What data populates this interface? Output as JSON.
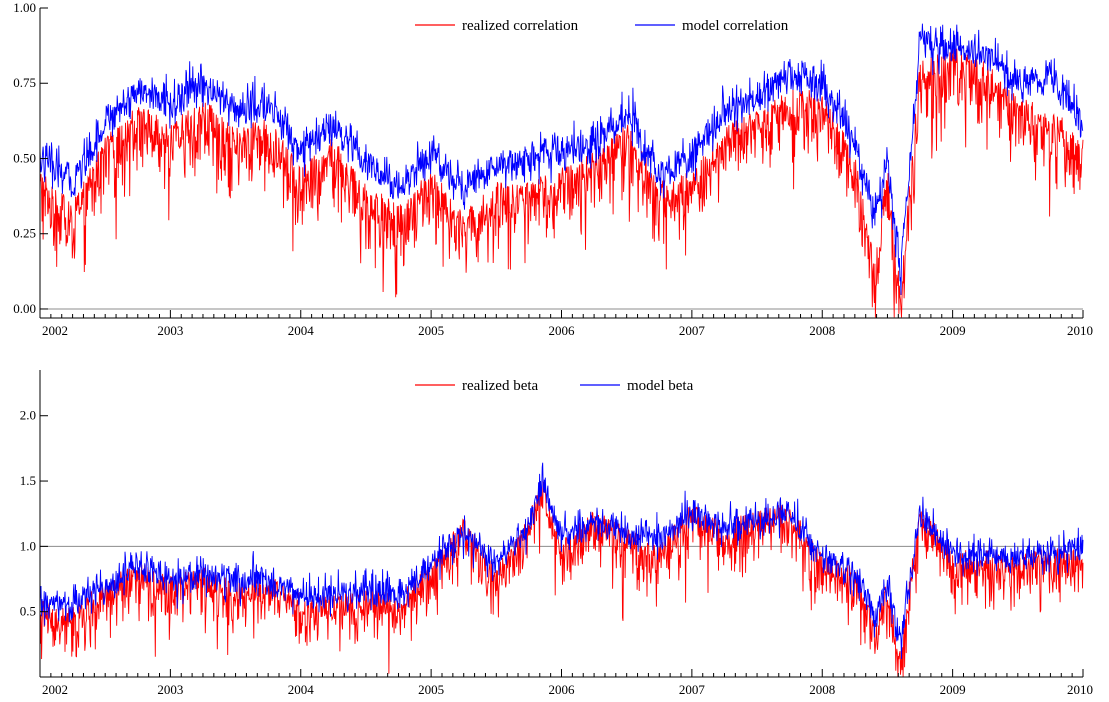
{
  "chart_data": [
    {
      "type": "line",
      "title": "",
      "xlabel": "",
      "ylabel": "",
      "xlim": [
        2002,
        2010
      ],
      "ylim": [
        -0.03,
        1.0
      ],
      "x_ticks": [
        "2002",
        "2003",
        "2004",
        "2005",
        "2006",
        "2007",
        "2008",
        "2009",
        "2010"
      ],
      "y_ticks": [
        "0.00",
        "0.25",
        "0.50",
        "0.75",
        "1.00"
      ],
      "y_tick_values": [
        0.0,
        0.25,
        0.5,
        0.75,
        1.0
      ],
      "reference_line": 0.0,
      "legend_position": "top-center",
      "grid": false,
      "x": [
        2002.0,
        2002.25,
        2002.5,
        2002.75,
        2003.0,
        2003.25,
        2003.5,
        2003.75,
        2004.0,
        2004.25,
        2004.5,
        2004.75,
        2005.0,
        2005.25,
        2005.5,
        2005.75,
        2006.0,
        2006.25,
        2006.5,
        2006.75,
        2007.0,
        2007.25,
        2007.5,
        2007.75,
        2008.0,
        2008.25,
        2008.4,
        2008.5,
        2008.6,
        2008.75,
        2009.0,
        2009.25,
        2009.5,
        2009.75,
        2010.0
      ],
      "series": [
        {
          "name": "realized correlation",
          "color": "#ff0000",
          "values": [
            0.45,
            0.33,
            0.55,
            0.66,
            0.6,
            0.68,
            0.58,
            0.62,
            0.45,
            0.55,
            0.4,
            0.32,
            0.45,
            0.3,
            0.4,
            0.4,
            0.45,
            0.5,
            0.6,
            0.4,
            0.45,
            0.58,
            0.65,
            0.72,
            0.7,
            0.5,
            0.15,
            0.45,
            0.05,
            0.8,
            0.85,
            0.8,
            0.68,
            0.65,
            0.55
          ]
        },
        {
          "name": "model correlation",
          "color": "#0000ff",
          "values": [
            0.5,
            0.42,
            0.62,
            0.73,
            0.68,
            0.75,
            0.66,
            0.68,
            0.53,
            0.6,
            0.48,
            0.4,
            0.52,
            0.4,
            0.48,
            0.5,
            0.52,
            0.55,
            0.65,
            0.45,
            0.5,
            0.65,
            0.7,
            0.78,
            0.75,
            0.55,
            0.3,
            0.5,
            0.12,
            0.88,
            0.87,
            0.85,
            0.75,
            0.78,
            0.62
          ]
        }
      ]
    },
    {
      "type": "line",
      "title": "",
      "xlabel": "",
      "ylabel": "",
      "xlim": [
        2002,
        2010
      ],
      "ylim": [
        0.0,
        2.35
      ],
      "x_ticks": [
        "2002",
        "2003",
        "2004",
        "2005",
        "2006",
        "2007",
        "2008",
        "2009",
        "2010"
      ],
      "y_ticks": [
        "0.5",
        "1.0",
        "1.5",
        "2.0"
      ],
      "y_tick_values": [
        0.5,
        1.0,
        1.5,
        2.0
      ],
      "reference_line": 1.0,
      "legend_position": "top-center",
      "grid": false,
      "x": [
        2002.0,
        2002.25,
        2002.5,
        2002.75,
        2003.0,
        2003.25,
        2003.5,
        2003.75,
        2004.0,
        2004.25,
        2004.5,
        2004.75,
        2005.0,
        2005.25,
        2005.5,
        2005.75,
        2005.85,
        2006.0,
        2006.25,
        2006.5,
        2006.75,
        2007.0,
        2007.25,
        2007.5,
        2007.75,
        2008.0,
        2008.25,
        2008.4,
        2008.5,
        2008.6,
        2008.75,
        2009.0,
        2009.25,
        2009.5,
        2009.75,
        2010.0
      ],
      "series": [
        {
          "name": "realized beta",
          "color": "#ff0000",
          "values": [
            0.55,
            0.5,
            0.7,
            0.85,
            0.75,
            0.8,
            0.7,
            0.75,
            0.6,
            0.6,
            0.65,
            0.6,
            0.85,
            1.2,
            0.8,
            1.2,
            1.5,
            1.0,
            1.25,
            1.1,
            1.0,
            1.3,
            1.15,
            1.25,
            1.3,
            0.9,
            0.8,
            0.4,
            0.7,
            0.2,
            1.3,
            0.95,
            0.95,
            0.9,
            0.95,
            0.95
          ]
        },
        {
          "name": "model beta",
          "color": "#0000ff",
          "values": [
            0.55,
            0.55,
            0.7,
            0.85,
            0.75,
            0.8,
            0.72,
            0.75,
            0.62,
            0.62,
            0.65,
            0.62,
            0.85,
            1.1,
            0.85,
            1.15,
            1.5,
            1.05,
            1.2,
            1.1,
            1.05,
            1.25,
            1.15,
            1.2,
            1.25,
            0.9,
            0.8,
            0.45,
            0.7,
            0.25,
            1.25,
            0.95,
            0.95,
            0.9,
            0.95,
            0.95
          ]
        }
      ]
    }
  ]
}
